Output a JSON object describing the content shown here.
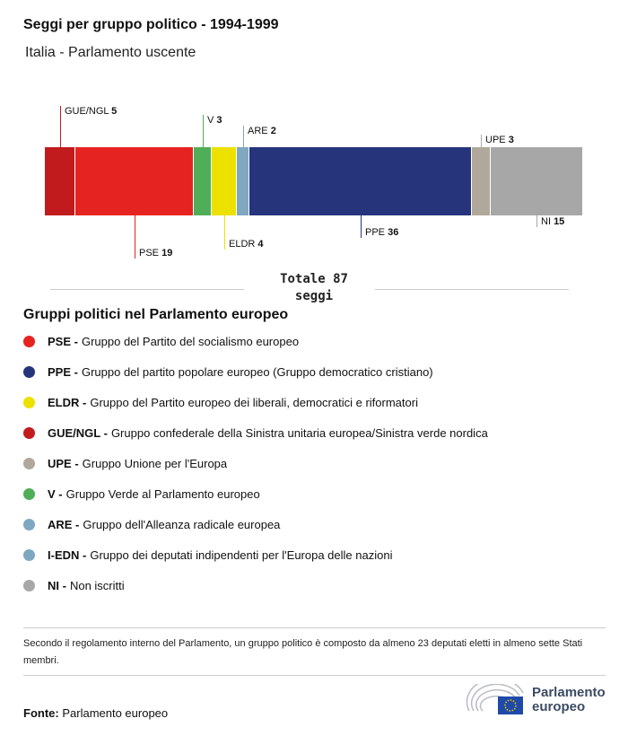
{
  "header": {
    "title": "Seggi per gruppo politico - 1994-1999",
    "subtitle": "Italia - Parlamento uscente"
  },
  "chart_data": {
    "type": "bar",
    "orientation": "horizontal-stacked",
    "categories": [
      "GUE/NGL",
      "PSE",
      "V",
      "ELDR",
      "ARE",
      "PPE",
      "UPE",
      "NI"
    ],
    "values": [
      5,
      19,
      3,
      4,
      2,
      36,
      3,
      15
    ],
    "colors": [
      "#c11b1e",
      "#e52421",
      "#4fae57",
      "#ede100",
      "#7fa7c0",
      "#26347b",
      "#b0a89b",
      "#a7a7a7"
    ],
    "label_positions": [
      "top",
      "bottom",
      "top",
      "bottom",
      "top",
      "bottom",
      "top",
      "bottom"
    ],
    "total_label": "Totale 87 seggi",
    "title": "",
    "xlabel": "",
    "ylabel": ""
  },
  "legend": {
    "title": "Gruppi politici nel Parlamento europeo",
    "items": [
      {
        "abbr": "PSE -",
        "desc": "Gruppo del Partito del socialismo europeo",
        "color": "#e52421"
      },
      {
        "abbr": "PPE -",
        "desc": "Gruppo del partito popolare europeo (Gruppo democratico cristiano)",
        "color": "#26347b"
      },
      {
        "abbr": "ELDR -",
        "desc": "Gruppo del Partito europeo dei liberali, democratici e riformatori",
        "color": "#ede100"
      },
      {
        "abbr": "GUE/NGL -",
        "desc": "Gruppo confederale della Sinistra unitaria europea/Sinistra verde nordica",
        "color": "#c11b1e"
      },
      {
        "abbr": "UPE -",
        "desc": "Gruppo Unione per l'Europa",
        "color": "#b0a89b"
      },
      {
        "abbr": "V -",
        "desc": "Gruppo Verde al Parlamento europeo",
        "color": "#4fae57"
      },
      {
        "abbr": "ARE -",
        "desc": "Gruppo dell'Alleanza radicale europea",
        "color": "#7fa7c0"
      },
      {
        "abbr": "I-EDN -",
        "desc": "Gruppo dei deputati indipendenti per l'Europa delle nazioni",
        "color": "#7fa7c0"
      },
      {
        "abbr": "NI -",
        "desc": "Non iscritti",
        "color": "#a7a7a7"
      }
    ]
  },
  "note": "Secondo il regolamento interno del Parlamento, un gruppo politico è composto da almeno 23 deputati eletti in almeno sette Stati membri.",
  "footer": {
    "source_label": "Fonte:",
    "source": "Parlamento europeo",
    "logo_text_1": "Parlamento",
    "logo_text_2": "europeo"
  }
}
